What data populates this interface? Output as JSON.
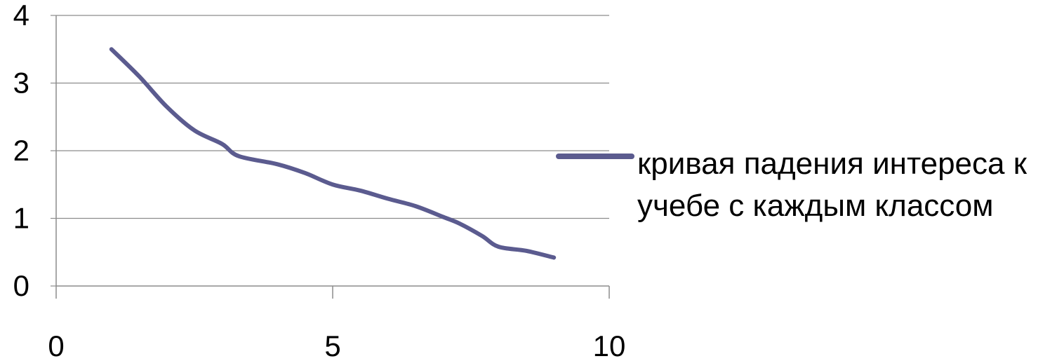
{
  "chart_data": {
    "type": "line",
    "title": "",
    "xlabel": "",
    "ylabel": "",
    "xlim": [
      0,
      10
    ],
    "ylim": [
      0,
      4
    ],
    "x_ticks": [
      "0",
      "5",
      "10"
    ],
    "y_ticks": [
      "0",
      "1",
      "2",
      "3",
      "4"
    ],
    "grid": "horizontal",
    "legend_position": "right",
    "series": [
      {
        "name": "кривая падения интереса к учебе с каждым классом",
        "color": "#5b5b8f",
        "x": [
          1,
          1.5,
          2,
          2.5,
          3,
          3.3,
          4,
          4.5,
          5,
          5.5,
          6,
          6.5,
          7,
          7.3,
          7.7,
          8,
          8.5,
          9
        ],
        "y": [
          3.5,
          3.1,
          2.65,
          2.3,
          2.1,
          1.92,
          1.8,
          1.67,
          1.5,
          1.41,
          1.29,
          1.18,
          1.02,
          0.92,
          0.74,
          0.58,
          0.52,
          0.42
        ]
      }
    ]
  }
}
